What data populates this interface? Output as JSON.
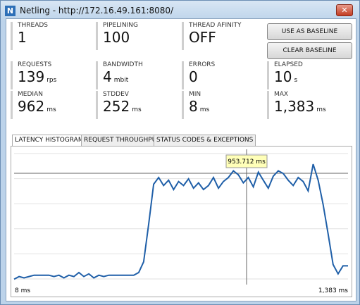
{
  "window": {
    "icon": "N",
    "title": "Netling - http://172.16.49.161:8080/"
  },
  "stats": [
    {
      "label": "THREADS",
      "value": "1"
    },
    {
      "label": "PIPELINING",
      "value": "100"
    },
    {
      "label": "THREAD AFINITY",
      "value": "OFF"
    },
    {
      "label": "REQUESTS",
      "value": "139",
      "unit": "rps"
    },
    {
      "label": "BANDWIDTH",
      "value": "4",
      "unit": "mbit"
    },
    {
      "label": "ERRORS",
      "value": "0"
    },
    {
      "label": "ELAPSED",
      "value": "10",
      "unit": "s"
    },
    {
      "label": "MEDIAN",
      "value": "962",
      "unit": "ms"
    },
    {
      "label": "STDDEV",
      "value": "252",
      "unit": "ms"
    },
    {
      "label": "MIN",
      "value": "8",
      "unit": "ms"
    },
    {
      "label": "MAX",
      "value": "1,383",
      "unit": "ms"
    }
  ],
  "buttons": [
    "USE AS BASELINE",
    "CLEAR BASELINE"
  ],
  "tabs": [
    "LATENCY HISTOGRAM",
    "REQUEST THROUGHPUT",
    "STATUS CODES & EXCEPTIONS"
  ],
  "chart_data": {
    "type": "line",
    "color": "#1f5fa8",
    "ylim": [
      0,
      100
    ],
    "x_labels": [
      "8 ms",
      "1,383 ms"
    ],
    "annotation": "953.712 ms",
    "values": [
      4,
      6,
      5,
      6,
      7,
      7,
      7,
      7,
      6,
      7,
      5,
      7,
      6,
      9,
      6,
      8,
      5,
      7,
      6,
      7,
      7,
      7,
      7,
      7,
      7,
      9,
      17,
      45,
      75,
      80,
      74,
      78,
      71,
      77,
      74,
      79,
      72,
      76,
      71,
      74,
      80,
      72,
      77,
      80,
      85,
      82,
      76,
      80,
      73,
      84,
      78,
      72,
      81,
      85,
      83,
      78,
      74,
      80,
      77,
      70,
      90,
      78,
      60,
      38,
      15,
      8,
      14,
      14
    ]
  }
}
